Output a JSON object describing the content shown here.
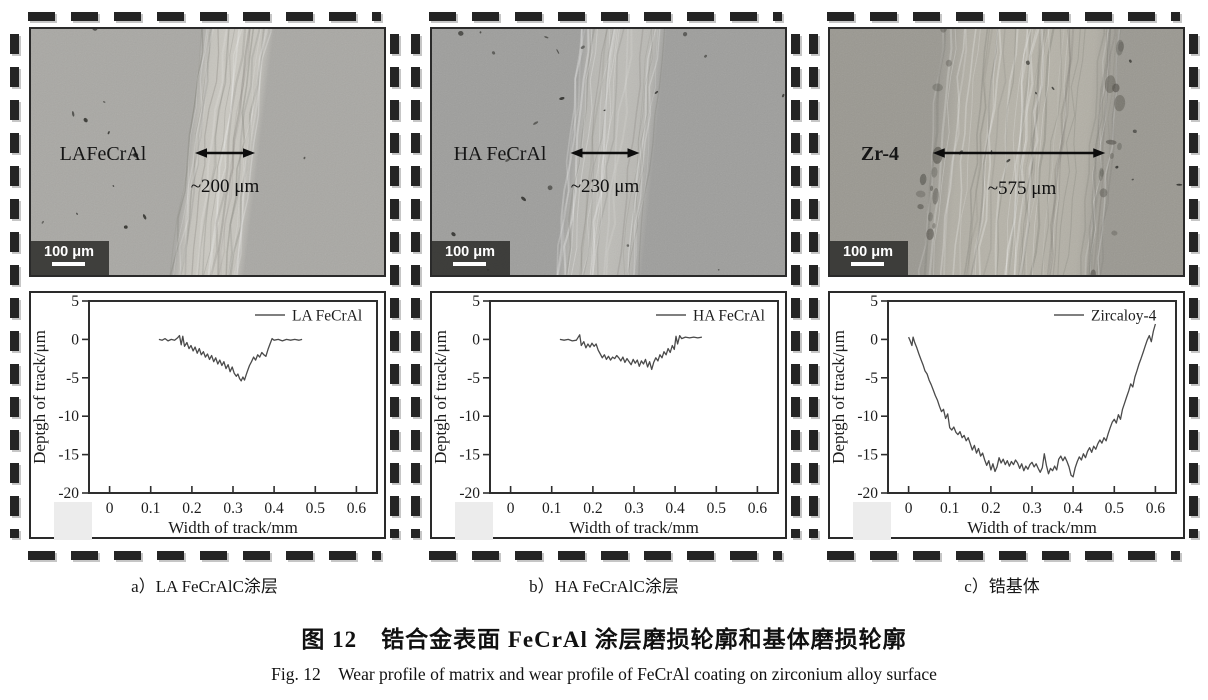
{
  "figure": {
    "caption_cn": "图 12　锆合金表面 FeCrAl 涂层磨损轮廓和基体磨损轮廓",
    "caption_en": "Fig. 12　Wear profile of matrix and wear profile of FeCrAl coating on zirconium alloy surface"
  },
  "panels": [
    {
      "id": "a",
      "sub_caption": "a）LA FeCrAlC涂层",
      "micrograph": {
        "label": "LAFeCrAl",
        "track_width_um": 200,
        "track_width_label": "~200 μm",
        "scale_bar_label": "100 μm"
      }
    },
    {
      "id": "b",
      "sub_caption": "b）HA FeCrAlC涂层",
      "micrograph": {
        "label": "HA FeCrAl",
        "track_width_um": 230,
        "track_width_label": "~230 μm",
        "scale_bar_label": "100 μm"
      }
    },
    {
      "id": "c",
      "sub_caption": "c）锆基体",
      "micrograph": {
        "label": "Zr-4",
        "track_width_um": 575,
        "track_width_label": "~575 μm",
        "scale_bar_label": "100 μm"
      }
    }
  ],
  "chart_data": [
    {
      "type": "line",
      "title": "",
      "xlabel": "Width of track/mm",
      "ylabel": "Deptgh of track/μm",
      "xlim": [
        -0.05,
        0.65
      ],
      "ylim": [
        -20,
        5
      ],
      "xticks": [
        0,
        0.1,
        0.2,
        0.3,
        0.4,
        0.5,
        0.6
      ],
      "yticks": [
        5,
        0,
        -5,
        -10,
        -15,
        -20
      ],
      "grid": false,
      "legend": {
        "label": "LA FeCrAl",
        "position": "top-right"
      },
      "line_color": "#4a4a4a",
      "series": [
        {
          "name": "LA FeCrAl",
          "points": [
            [
              0.12,
              0.0
            ],
            [
              0.128,
              -0.1
            ],
            [
              0.135,
              0.1
            ],
            [
              0.142,
              -0.2
            ],
            [
              0.15,
              0.0
            ],
            [
              0.158,
              -0.1
            ],
            [
              0.165,
              0.2
            ],
            [
              0.17,
              0.5
            ],
            [
              0.174,
              -0.7
            ],
            [
              0.178,
              0.4
            ],
            [
              0.182,
              -0.9
            ],
            [
              0.188,
              -0.4
            ],
            [
              0.193,
              -1.2
            ],
            [
              0.198,
              -0.8
            ],
            [
              0.203,
              -1.5
            ],
            [
              0.208,
              -1.0
            ],
            [
              0.213,
              -1.8
            ],
            [
              0.218,
              -1.2
            ],
            [
              0.223,
              -2.0
            ],
            [
              0.228,
              -1.6
            ],
            [
              0.233,
              -2.3
            ],
            [
              0.238,
              -1.9
            ],
            [
              0.243,
              -2.6
            ],
            [
              0.248,
              -2.1
            ],
            [
              0.253,
              -2.9
            ],
            [
              0.258,
              -2.4
            ],
            [
              0.263,
              -3.2
            ],
            [
              0.268,
              -2.7
            ],
            [
              0.273,
              -3.4
            ],
            [
              0.278,
              -2.9
            ],
            [
              0.283,
              -3.8
            ],
            [
              0.288,
              -3.3
            ],
            [
              0.293,
              -4.2
            ],
            [
              0.298,
              -3.6
            ],
            [
              0.303,
              -4.4
            ],
            [
              0.308,
              -4.8
            ],
            [
              0.312,
              -4.5
            ],
            [
              0.316,
              -5.1
            ],
            [
              0.32,
              -5.4
            ],
            [
              0.324,
              -4.9
            ],
            [
              0.328,
              -5.3
            ],
            [
              0.332,
              -4.6
            ],
            [
              0.336,
              -4.0
            ],
            [
              0.34,
              -3.4
            ],
            [
              0.345,
              -2.9
            ],
            [
              0.35,
              -2.3
            ],
            [
              0.355,
              -2.7
            ],
            [
              0.36,
              -2.0
            ],
            [
              0.365,
              -2.3
            ],
            [
              0.37,
              -1.7
            ],
            [
              0.375,
              -2.0
            ],
            [
              0.38,
              -2.2
            ],
            [
              0.385,
              -1.3
            ],
            [
              0.39,
              -0.6
            ],
            [
              0.395,
              0.1
            ],
            [
              0.4,
              -0.1
            ],
            [
              0.41,
              0.0
            ],
            [
              0.42,
              -0.2
            ],
            [
              0.43,
              0.0
            ],
            [
              0.44,
              -0.1
            ],
            [
              0.45,
              0.0
            ],
            [
              0.46,
              -0.1
            ],
            [
              0.468,
              0.0
            ]
          ]
        }
      ]
    },
    {
      "type": "line",
      "title": "",
      "xlabel": "Width of track/mm",
      "ylabel": "Deptgh of track/μm",
      "xlim": [
        -0.05,
        0.65
      ],
      "ylim": [
        -20,
        5
      ],
      "xticks": [
        0,
        0.1,
        0.2,
        0.3,
        0.4,
        0.5,
        0.6
      ],
      "yticks": [
        5,
        0,
        -5,
        -10,
        -15,
        -20
      ],
      "grid": false,
      "legend": {
        "label": "HA FeCrAl",
        "position": "top-right"
      },
      "line_color": "#4a4a4a",
      "series": [
        {
          "name": "HA FeCrAl",
          "points": [
            [
              0.12,
              0.0
            ],
            [
              0.13,
              -0.1
            ],
            [
              0.14,
              0.0
            ],
            [
              0.15,
              -0.2
            ],
            [
              0.16,
              -0.1
            ],
            [
              0.168,
              0.6
            ],
            [
              0.172,
              -0.8
            ],
            [
              0.178,
              -0.3
            ],
            [
              0.183,
              -1.1
            ],
            [
              0.188,
              -0.6
            ],
            [
              0.193,
              -1.0
            ],
            [
              0.198,
              -0.5
            ],
            [
              0.203,
              -0.9
            ],
            [
              0.208,
              -0.6
            ],
            [
              0.213,
              -1.4
            ],
            [
              0.218,
              -1.9
            ],
            [
              0.223,
              -2.4
            ],
            [
              0.228,
              -2.0
            ],
            [
              0.233,
              -2.6
            ],
            [
              0.238,
              -2.2
            ],
            [
              0.243,
              -2.7
            ],
            [
              0.248,
              -2.3
            ],
            [
              0.253,
              -2.5
            ],
            [
              0.258,
              -2.1
            ],
            [
              0.263,
              -2.4
            ],
            [
              0.268,
              -2.8
            ],
            [
              0.273,
              -2.3
            ],
            [
              0.278,
              -3.0
            ],
            [
              0.283,
              -2.5
            ],
            [
              0.288,
              -2.9
            ],
            [
              0.293,
              -3.3
            ],
            [
              0.298,
              -2.6
            ],
            [
              0.303,
              -3.1
            ],
            [
              0.308,
              -2.7
            ],
            [
              0.313,
              -3.5
            ],
            [
              0.318,
              -2.8
            ],
            [
              0.323,
              -3.2
            ],
            [
              0.328,
              -2.6
            ],
            [
              0.333,
              -3.6
            ],
            [
              0.338,
              -2.9
            ],
            [
              0.343,
              -3.9
            ],
            [
              0.348,
              -3.0
            ],
            [
              0.353,
              -2.4
            ],
            [
              0.358,
              -2.8
            ],
            [
              0.363,
              -2.0
            ],
            [
              0.368,
              -2.4
            ],
            [
              0.373,
              -1.6
            ],
            [
              0.378,
              -2.0
            ],
            [
              0.383,
              -1.2
            ],
            [
              0.388,
              -1.7
            ],
            [
              0.393,
              -0.8
            ],
            [
              0.398,
              -1.3
            ],
            [
              0.402,
              0.4
            ],
            [
              0.406,
              -0.6
            ],
            [
              0.411,
              0.5
            ],
            [
              0.416,
              0.1
            ],
            [
              0.425,
              0.3
            ],
            [
              0.435,
              0.2
            ],
            [
              0.445,
              0.3
            ],
            [
              0.455,
              0.2
            ],
            [
              0.465,
              0.3
            ]
          ]
        }
      ]
    },
    {
      "type": "line",
      "title": "",
      "xlabel": "Width of track/mm",
      "ylabel": "Deptgh of track/μm",
      "xlim": [
        -0.05,
        0.65
      ],
      "ylim": [
        -20,
        5
      ],
      "xticks": [
        0,
        0.1,
        0.2,
        0.3,
        0.4,
        0.5,
        0.6
      ],
      "yticks": [
        5,
        0,
        -5,
        -10,
        -15,
        -20
      ],
      "grid": false,
      "legend": {
        "label": "Zircaloy-4",
        "position": "top-right"
      },
      "line_color": "#4a4a4a",
      "series": [
        {
          "name": "Zircaloy-4",
          "points": [
            [
              0.0,
              0.3
            ],
            [
              0.004,
              -0.2
            ],
            [
              0.008,
              -0.8
            ],
            [
              0.011,
              0.3
            ],
            [
              0.015,
              -0.4
            ],
            [
              0.02,
              -1.1
            ],
            [
              0.025,
              -1.9
            ],
            [
              0.03,
              -2.6
            ],
            [
              0.035,
              -3.3
            ],
            [
              0.04,
              -4.1
            ],
            [
              0.045,
              -4.5
            ],
            [
              0.05,
              -5.3
            ],
            [
              0.055,
              -5.9
            ],
            [
              0.06,
              -6.6
            ],
            [
              0.065,
              -7.3
            ],
            [
              0.07,
              -7.9
            ],
            [
              0.075,
              -8.7
            ],
            [
              0.08,
              -9.4
            ],
            [
              0.085,
              -9.1
            ],
            [
              0.09,
              -10.3
            ],
            [
              0.095,
              -9.7
            ],
            [
              0.1,
              -11.5
            ],
            [
              0.105,
              -11.8
            ],
            [
              0.11,
              -11.4
            ],
            [
              0.115,
              -12.1
            ],
            [
              0.12,
              -12.4
            ],
            [
              0.125,
              -12.0
            ],
            [
              0.13,
              -12.8
            ],
            [
              0.135,
              -12.5
            ],
            [
              0.14,
              -13.2
            ],
            [
              0.145,
              -12.8
            ],
            [
              0.15,
              -13.6
            ],
            [
              0.155,
              -14.4
            ],
            [
              0.16,
              -13.8
            ],
            [
              0.165,
              -14.8
            ],
            [
              0.17,
              -14.2
            ],
            [
              0.175,
              -15.2
            ],
            [
              0.18,
              -14.8
            ],
            [
              0.185,
              -15.7
            ],
            [
              0.19,
              -16.4
            ],
            [
              0.195,
              -15.8
            ],
            [
              0.2,
              -17.0
            ],
            [
              0.205,
              -16.2
            ],
            [
              0.21,
              -17.2
            ],
            [
              0.215,
              -16.6
            ],
            [
              0.22,
              -15.4
            ],
            [
              0.225,
              -16.1
            ],
            [
              0.23,
              -15.6
            ],
            [
              0.235,
              -16.3
            ],
            [
              0.24,
              -15.8
            ],
            [
              0.245,
              -16.5
            ],
            [
              0.25,
              -15.9
            ],
            [
              0.255,
              -16.3
            ],
            [
              0.26,
              -15.7
            ],
            [
              0.265,
              -16.1
            ],
            [
              0.27,
              -16.8
            ],
            [
              0.275,
              -16.2
            ],
            [
              0.28,
              -17.1
            ],
            [
              0.285,
              -16.5
            ],
            [
              0.29,
              -16.9
            ],
            [
              0.295,
              -16.3
            ],
            [
              0.3,
              -16.0
            ],
            [
              0.305,
              -16.6
            ],
            [
              0.31,
              -16.2
            ],
            [
              0.315,
              -16.8
            ],
            [
              0.32,
              -17.3
            ],
            [
              0.325,
              -16.7
            ],
            [
              0.33,
              -14.9
            ],
            [
              0.335,
              -16.4
            ],
            [
              0.34,
              -17.5
            ],
            [
              0.345,
              -16.8
            ],
            [
              0.35,
              -17.1
            ],
            [
              0.355,
              -16.5
            ],
            [
              0.36,
              -17.0
            ],
            [
              0.365,
              -15.6
            ],
            [
              0.37,
              -15.2
            ],
            [
              0.375,
              -15.8
            ],
            [
              0.38,
              -15.3
            ],
            [
              0.385,
              -15.9
            ],
            [
              0.39,
              -16.6
            ],
            [
              0.395,
              -17.7
            ],
            [
              0.4,
              -17.9
            ],
            [
              0.405,
              -16.7
            ],
            [
              0.41,
              -15.9
            ],
            [
              0.415,
              -15.3
            ],
            [
              0.42,
              -15.7
            ],
            [
              0.425,
              -14.9
            ],
            [
              0.43,
              -15.4
            ],
            [
              0.435,
              -14.6
            ],
            [
              0.44,
              -14.1
            ],
            [
              0.445,
              -14.7
            ],
            [
              0.45,
              -13.9
            ],
            [
              0.455,
              -14.3
            ],
            [
              0.46,
              -13.6
            ],
            [
              0.465,
              -13.1
            ],
            [
              0.47,
              -13.5
            ],
            [
              0.475,
              -12.8
            ],
            [
              0.48,
              -13.2
            ],
            [
              0.485,
              -12.3
            ],
            [
              0.49,
              -11.5
            ],
            [
              0.495,
              -10.8
            ],
            [
              0.5,
              -10.4
            ],
            [
              0.505,
              -10.9
            ],
            [
              0.51,
              -9.8
            ],
            [
              0.515,
              -10.4
            ],
            [
              0.52,
              -9.1
            ],
            [
              0.525,
              -8.3
            ],
            [
              0.53,
              -7.5
            ],
            [
              0.535,
              -6.7
            ],
            [
              0.54,
              -5.8
            ],
            [
              0.545,
              -6.2
            ],
            [
              0.55,
              -4.9
            ],
            [
              0.555,
              -4.1
            ],
            [
              0.56,
              -3.2
            ],
            [
              0.565,
              -2.5
            ],
            [
              0.57,
              -1.7
            ],
            [
              0.575,
              -0.9
            ],
            [
              0.58,
              -0.1
            ],
            [
              0.585,
              0.5
            ],
            [
              0.59,
              -0.3
            ],
            [
              0.595,
              1.1
            ],
            [
              0.6,
              2.0
            ]
          ]
        }
      ]
    }
  ]
}
